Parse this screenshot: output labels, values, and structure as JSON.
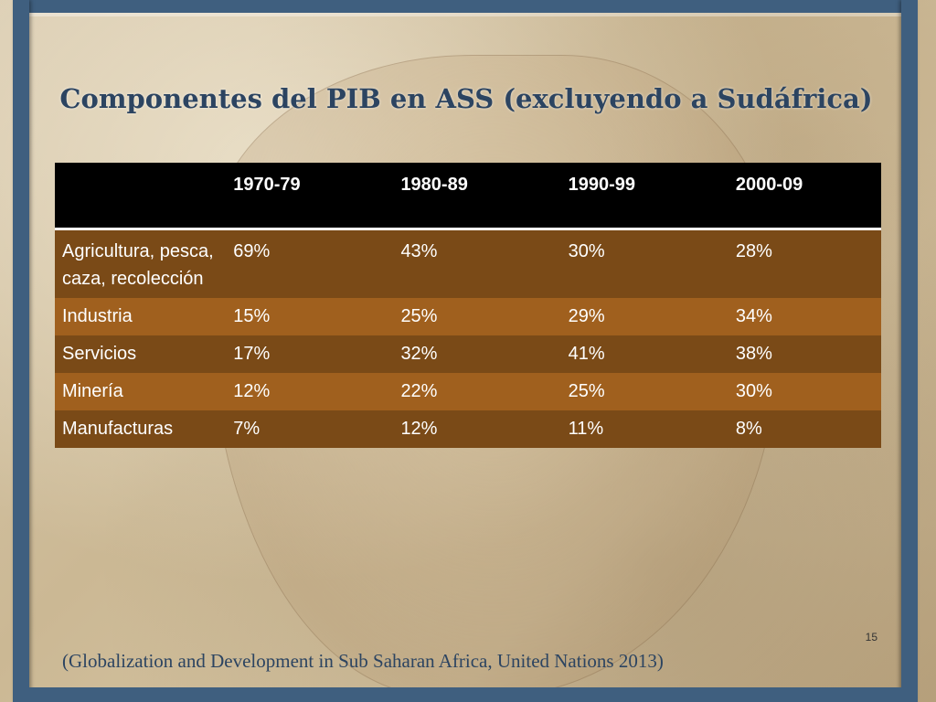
{
  "slide": {
    "title": "Componentes del PIB en ASS (excluyendo a Sudáfrica)",
    "page_number": "15",
    "citation": "(Globalization and Development in Sub Saharan Africa, United Nations 2013)"
  },
  "table": {
    "headers": [
      "",
      "1970-79",
      "1980-89",
      "1990-99",
      "2000-09"
    ],
    "rows": [
      {
        "label": "Agricultura, pesca, caza, recolección",
        "values": [
          "69%",
          "43%",
          "30%",
          "28%"
        ]
      },
      {
        "label": "Industria",
        "values": [
          "15%",
          "25%",
          "29%",
          "34%"
        ]
      },
      {
        "label": "Servicios",
        "values": [
          "17%",
          "32%",
          "41%",
          "38%"
        ]
      },
      {
        "label": "Minería",
        "values": [
          "12%",
          "22%",
          "25%",
          "30%"
        ]
      },
      {
        "label": "Manufacturas",
        "values": [
          "7%",
          "12%",
          "11%",
          "8%"
        ]
      }
    ]
  },
  "colors": {
    "header_bg": "#000000",
    "row_dark": "#7a4a17",
    "row_light": "#a0601e",
    "title": "#2c4461",
    "frame": "#3f5f7f"
  }
}
